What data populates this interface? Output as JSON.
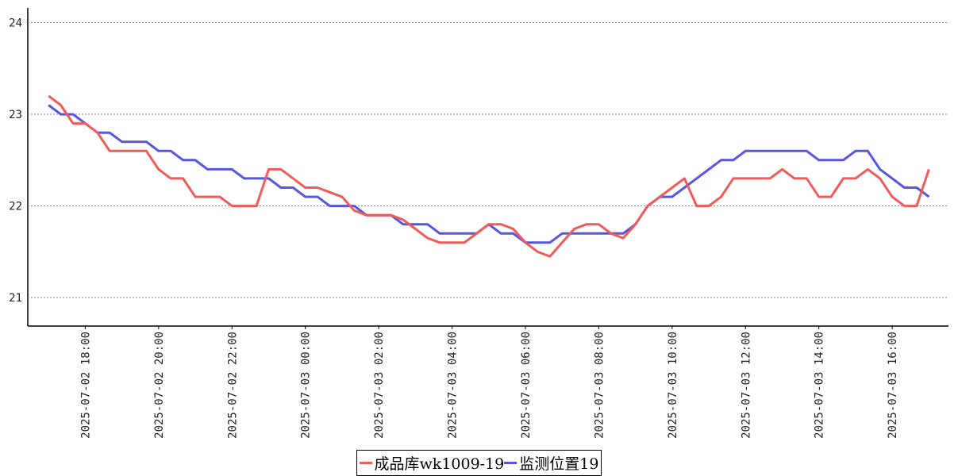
{
  "chart_data": {
    "type": "line",
    "x": [
      "2025-07-02 17:00",
      "2025-07-02 17:20",
      "2025-07-02 17:40",
      "2025-07-02 18:00",
      "2025-07-02 18:20",
      "2025-07-02 18:40",
      "2025-07-02 19:00",
      "2025-07-02 19:20",
      "2025-07-02 19:40",
      "2025-07-02 20:00",
      "2025-07-02 20:20",
      "2025-07-02 20:40",
      "2025-07-02 21:00",
      "2025-07-02 21:20",
      "2025-07-02 21:40",
      "2025-07-02 22:00",
      "2025-07-02 22:20",
      "2025-07-02 22:40",
      "2025-07-02 23:00",
      "2025-07-02 23:20",
      "2025-07-02 23:40",
      "2025-07-03 00:00",
      "2025-07-03 00:20",
      "2025-07-03 00:40",
      "2025-07-03 01:00",
      "2025-07-03 01:20",
      "2025-07-03 01:40",
      "2025-07-03 02:00",
      "2025-07-03 02:20",
      "2025-07-03 02:40",
      "2025-07-03 03:00",
      "2025-07-03 03:20",
      "2025-07-03 03:40",
      "2025-07-03 04:00",
      "2025-07-03 04:20",
      "2025-07-03 04:40",
      "2025-07-03 05:00",
      "2025-07-03 05:20",
      "2025-07-03 05:40",
      "2025-07-03 06:00",
      "2025-07-03 06:20",
      "2025-07-03 06:40",
      "2025-07-03 07:00",
      "2025-07-03 07:20",
      "2025-07-03 07:40",
      "2025-07-03 08:00",
      "2025-07-03 08:20",
      "2025-07-03 08:40",
      "2025-07-03 09:00",
      "2025-07-03 09:20",
      "2025-07-03 09:40",
      "2025-07-03 10:00",
      "2025-07-03 10:20",
      "2025-07-03 10:40",
      "2025-07-03 11:00",
      "2025-07-03 11:20",
      "2025-07-03 11:40",
      "2025-07-03 12:00",
      "2025-07-03 12:20",
      "2025-07-03 12:40",
      "2025-07-03 13:00",
      "2025-07-03 13:20",
      "2025-07-03 13:40",
      "2025-07-03 14:00",
      "2025-07-03 14:20",
      "2025-07-03 14:40",
      "2025-07-03 15:00",
      "2025-07-03 15:20",
      "2025-07-03 15:40",
      "2025-07-03 16:00",
      "2025-07-03 16:20",
      "2025-07-03 16:40",
      "2025-07-03 17:00"
    ],
    "series": [
      {
        "name": "成品库wk1009-19",
        "color": "#f05a5a",
        "values": [
          23.2,
          23.1,
          22.9,
          22.9,
          22.8,
          22.6,
          22.6,
          22.6,
          22.6,
          22.4,
          22.3,
          22.3,
          22.1,
          22.1,
          22.1,
          22.0,
          22.0,
          22.0,
          22.4,
          22.4,
          22.3,
          22.2,
          22.2,
          22.15,
          22.1,
          21.95,
          21.9,
          21.9,
          21.9,
          21.85,
          21.75,
          21.65,
          21.6,
          21.6,
          21.6,
          21.7,
          21.8,
          21.8,
          21.75,
          21.6,
          21.5,
          21.45,
          21.6,
          21.75,
          21.8,
          21.8,
          21.7,
          21.65,
          21.8,
          22.0,
          22.1,
          22.2,
          22.3,
          22.0,
          22.0,
          22.1,
          22.3,
          22.3,
          22.3,
          22.3,
          22.4,
          22.3,
          22.3,
          22.1,
          22.1,
          22.3,
          22.3,
          22.4,
          22.3,
          22.1,
          22.0,
          22.0,
          22.4
        ]
      },
      {
        "name": "监测位置19",
        "color": "#5555e0",
        "values": [
          23.1,
          23.0,
          23.0,
          22.9,
          22.8,
          22.8,
          22.7,
          22.7,
          22.7,
          22.6,
          22.6,
          22.5,
          22.5,
          22.4,
          22.4,
          22.4,
          22.3,
          22.3,
          22.3,
          22.2,
          22.2,
          22.1,
          22.1,
          22.0,
          22.0,
          22.0,
          21.9,
          21.9,
          21.9,
          21.8,
          21.8,
          21.8,
          21.7,
          21.7,
          21.7,
          21.7,
          21.8,
          21.7,
          21.7,
          21.6,
          21.6,
          21.6,
          21.7,
          21.7,
          21.7,
          21.7,
          21.7,
          21.7,
          21.8,
          22.0,
          22.1,
          22.1,
          22.2,
          22.3,
          22.4,
          22.5,
          22.5,
          22.6,
          22.6,
          22.6,
          22.6,
          22.6,
          22.6,
          22.5,
          22.5,
          22.5,
          22.6,
          22.6,
          22.4,
          22.3,
          22.2,
          22.2,
          22.1
        ]
      }
    ],
    "xlim": [
      "2025-07-02 16:26",
      "2025-07-03 17:32"
    ],
    "xticks": [
      "2025-07-02 18:00",
      "2025-07-02 20:00",
      "2025-07-02 22:00",
      "2025-07-03 00:00",
      "2025-07-03 02:00",
      "2025-07-03 04:00",
      "2025-07-03 06:00",
      "2025-07-03 08:00",
      "2025-07-03 10:00",
      "2025-07-03 12:00",
      "2025-07-03 14:00",
      "2025-07-03 16:00"
    ],
    "ylim": [
      20.69,
      24.16
    ],
    "yticks": [
      21,
      22,
      23,
      24
    ],
    "grid": true,
    "legend": "bottom"
  }
}
